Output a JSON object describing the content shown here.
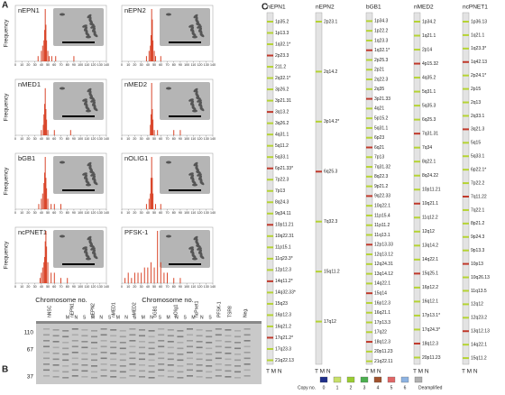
{
  "panelA": {
    "label": "A",
    "x_label": "Chromosome no.",
    "y_label": "Frequency",
    "xlim": [
      0,
      140
    ],
    "ylim": [
      0,
      10
    ],
    "xticks": [
      0,
      10,
      20,
      30,
      40,
      50,
      60,
      70,
      80,
      90,
      100,
      110,
      120,
      130,
      140
    ],
    "color": "#d9472b",
    "histograms": [
      {
        "name": "nEPN1",
        "x": [
          35,
          40,
          42,
          44,
          45,
          46,
          47,
          48,
          50,
          52,
          56,
          62,
          90
        ],
        "values": [
          1,
          2,
          3,
          4,
          6,
          10,
          7,
          4,
          2,
          1,
          1,
          1,
          1
        ]
      },
      {
        "name": "nEPN2",
        "x": [
          38,
          42,
          44,
          45,
          46,
          47,
          48,
          50,
          52,
          60
        ],
        "values": [
          1,
          2,
          3,
          5,
          10,
          8,
          4,
          2,
          1,
          1
        ]
      },
      {
        "name": "nMED1",
        "x": [
          40,
          43,
          44,
          45,
          46,
          47,
          48,
          50,
          60,
          85
        ],
        "values": [
          1,
          2,
          4,
          6,
          9,
          5,
          3,
          1,
          1,
          1
        ]
      },
      {
        "name": "nMED2",
        "x": [
          44,
          45,
          46,
          47,
          48,
          50,
          55,
          80,
          90
        ],
        "values": [
          2,
          4,
          10,
          5,
          3,
          1,
          1,
          1,
          1
        ]
      },
      {
        "name": "bGB1",
        "x": [
          36,
          40,
          42,
          44,
          45,
          46,
          47,
          48,
          50,
          55,
          60,
          70
        ],
        "values": [
          1,
          2,
          3,
          5,
          7,
          10,
          6,
          4,
          2,
          1,
          1,
          1
        ]
      },
      {
        "name": "nOLIG1",
        "x": [
          38,
          42,
          44,
          45,
          46,
          47,
          48,
          52,
          60
        ],
        "values": [
          1,
          2,
          3,
          6,
          10,
          6,
          3,
          1,
          1
        ]
      },
      {
        "name": "ncPNET1",
        "x": [
          38,
          40,
          42,
          44,
          45,
          46,
          47,
          48,
          50,
          55,
          60,
          70,
          80
        ],
        "values": [
          1,
          2,
          3,
          4,
          5,
          8,
          10,
          7,
          4,
          2,
          2,
          1,
          1
        ]
      },
      {
        "name": "PFSK-1",
        "x": [
          5,
          10,
          15,
          20,
          25,
          30,
          35,
          40,
          45,
          50,
          55,
          60,
          65,
          70,
          80,
          90
        ],
        "values": [
          1,
          2,
          1,
          2,
          2,
          2,
          3,
          3,
          4,
          3,
          10,
          4,
          2,
          2,
          1,
          1
        ]
      }
    ]
  },
  "panelB": {
    "label": "B",
    "markers": [
      110,
      67,
      37
    ],
    "lanes": [
      "hNSC",
      "nEPN1",
      "nEPN2",
      "nMED1",
      "nMED2",
      "bGB1",
      "nOlig1",
      "ncPnet1",
      "PFSK-1",
      "TSR8",
      "Neg."
    ],
    "sublanes": [
      "M",
      "N",
      "S",
      "M",
      "N",
      "S",
      "M",
      "N",
      "S",
      "M",
      "N",
      "S",
      "M",
      "N",
      "S",
      "M",
      "N",
      "S"
    ]
  },
  "panelC": {
    "label": "C",
    "footer": "T M N",
    "columns": [
      {
        "name": "nEPN1",
        "bands": [
          "1p35.2",
          "1p13.3",
          "1q32.1*",
          "2p23.3",
          "211.2",
          "2q32.1*",
          "3p26.2",
          "3p21.31",
          "3q13.2",
          "3q26.2",
          "4q31.1",
          "5q11.2",
          "5q33.1",
          "6p21.33*",
          "7p22.3",
          "7p13",
          "8q24.3",
          "9q34.11",
          "10p11.21",
          "10q22.31",
          "11p15.1",
          "11q23.3*",
          "12p12.3",
          "14q11.2*",
          "14q32.33*",
          "15q23",
          "16p12.3",
          "16q21.2",
          "17q21.2*",
          "17q23.3",
          "21q22.13"
        ]
      },
      {
        "name": "nEPN2",
        "bands": [
          "2p23.1",
          "2q14.2",
          "3p14.2*",
          "6q25.3",
          "7q32.3",
          "15q11.2",
          "17q12"
        ]
      },
      {
        "name": "bGB1",
        "bands": [
          "1p34.3",
          "1p22.2",
          "1q23.3",
          "1q32.1*",
          "2p25.3",
          "2p21",
          "2q22.3",
          "2q35",
          "3p21.33",
          "4q21",
          "5p15.2",
          "5q31.1",
          "6p23",
          "6q21",
          "7p13",
          "7q31.32",
          "8q22.3",
          "9p21.2",
          "9q22.33",
          "10q22.1",
          "11p15.4",
          "11p11.2",
          "11q13.1",
          "12p13.33",
          "12q13.12",
          "12q24.31",
          "13q14.12",
          "14q22.1",
          "15q14",
          "16p12.3",
          "16q21.1",
          "17p13.3",
          "17q22",
          "18q12.3",
          "20p11.23",
          "21q22.11"
        ]
      },
      {
        "name": "nMED2",
        "bands": [
          "1p34.2",
          "1q21.1",
          "2p14",
          "4p15.32",
          "4q35.2",
          "5q31.1",
          "5q35.3",
          "6q25.3",
          "7q31.31",
          "7q34",
          "8q22.1",
          "8q24.22",
          "10p11.21",
          "10q21.1",
          "11q12.2",
          "12q12",
          "13q14.2",
          "14q22.1",
          "15q25.1",
          "16p12.2",
          "16q12.1",
          "17p13.1*",
          "17q24.3*",
          "18q12.3",
          "20p11.23"
        ]
      },
      {
        "name": "ncPNET1",
        "bands": [
          "1p36.13",
          "1q21.1",
          "1q23.3*",
          "1q42.13",
          "2p24.1*",
          "2p15",
          "2q13",
          "2q33.1",
          "3q21.3",
          "5q15",
          "5q33.1",
          "6p22.1*",
          "7p22.2",
          "7q11.22",
          "7q22.1",
          "8p21.2",
          "9p24.3",
          "9p13.3",
          "10p13",
          "10q26.13",
          "11q13.5",
          "12q12",
          "12q23.2",
          "13q12.13",
          "14q22.1",
          "15q11.2"
        ]
      }
    ],
    "legend": {
      "title": "Copy no.",
      "entries": [
        0,
        1,
        2,
        3,
        4,
        5,
        6,
        "Deamplified"
      ],
      "colors": [
        "#1f2f8a",
        "#c8e06a",
        "#9acd32",
        "#4caf50",
        "#a0522d",
        "#e06666",
        "#8db3e2",
        "#b0b0b0"
      ]
    }
  }
}
